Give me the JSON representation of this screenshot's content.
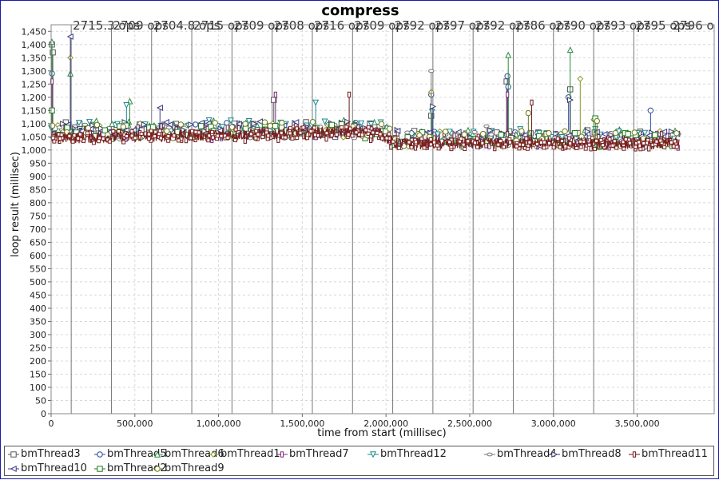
{
  "chart_data": {
    "type": "line",
    "title": "compress",
    "xlabel": "time from start (millisec)",
    "ylabel": "loop result (millisec)",
    "xlim": [
      0,
      3960000
    ],
    "ylim": [
      0,
      1475
    ],
    "x_ticks": [
      0,
      500000,
      1000000,
      1500000,
      2000000,
      2500000,
      3000000,
      3500000
    ],
    "x_tick_labels": [
      "0",
      "500,000",
      "1,000,000",
      "1,500,000",
      "2,000,000",
      "2,500,000",
      "3,000,000",
      "3,500,000"
    ],
    "y_ticks": [
      0,
      50,
      100,
      150,
      200,
      250,
      300,
      350,
      400,
      450,
      500,
      550,
      600,
      650,
      700,
      750,
      800,
      850,
      900,
      950,
      1000,
      1050,
      1100,
      1150,
      1200,
      1250,
      1300,
      1350,
      1400,
      1450
    ],
    "y_tick_labels": [
      "0",
      "50",
      "100",
      "150",
      "200",
      "250",
      "300",
      "350",
      "400",
      "450",
      "500",
      "550",
      "600",
      "650",
      "700",
      "750",
      "800",
      "850",
      "900",
      "950",
      "1,000",
      "1,050",
      "1,100",
      "1,150",
      "1,200",
      "1,250",
      "1,300",
      "1,350",
      "1,400",
      "1,450"
    ],
    "grid": true,
    "legend_position": "bottom",
    "marker_lines_x": [
      120000,
      360000,
      600000,
      840000,
      1080000,
      1320000,
      1560000,
      1800000,
      2040000,
      2280000,
      2520000,
      2760000,
      3000000,
      3240000,
      3480000
    ],
    "annotations": [
      "2715.3 ops",
      "2709 ops",
      "2704.8 ops",
      "2715 ops",
      "2709 ops",
      "2708 ops",
      "2716 ops",
      "2709 ops",
      "2792 ops",
      "2797 ops",
      "2792 ops",
      "2786 ops",
      "2790 ops",
      "2793 ops",
      "2795 ops",
      "2796 o"
    ],
    "series": [
      {
        "name": "bmThread3",
        "marker": "square",
        "color": "#555555",
        "baseline": [
          [
            0,
            1075
          ],
          [
            1950000,
            1080
          ],
          [
            2050000,
            1045
          ],
          [
            3750000,
            1045
          ]
        ],
        "spikes": [
          [
            5000,
            1400
          ],
          [
            10000,
            1370
          ],
          [
            1330000,
            1190
          ],
          [
            2270000,
            1130
          ],
          [
            2720000,
            1260
          ],
          [
            3100000,
            1230
          ]
        ]
      },
      {
        "name": "bmThread5",
        "marker": "circle",
        "color": "#2a4a9a",
        "baseline": [
          [
            0,
            1070
          ],
          [
            1950000,
            1078
          ],
          [
            2050000,
            1040
          ],
          [
            3750000,
            1040
          ]
        ],
        "spikes": [
          [
            5000,
            1290
          ],
          [
            2270000,
            1210
          ],
          [
            2725000,
            1280
          ],
          [
            2730000,
            1240
          ],
          [
            3090000,
            1200
          ],
          [
            3580000,
            1150
          ]
        ]
      },
      {
        "name": "bmThread6",
        "marker": "triangle-up",
        "color": "#2d8a3e",
        "baseline": [
          [
            0,
            1080
          ],
          [
            1950000,
            1085
          ],
          [
            2050000,
            1050
          ],
          [
            3750000,
            1050
          ]
        ],
        "spikes": [
          [
            5000,
            1410
          ],
          [
            115000,
            1290
          ],
          [
            470000,
            1185
          ],
          [
            2730000,
            1360
          ],
          [
            3100000,
            1380
          ]
        ]
      },
      {
        "name": "bmThread1",
        "marker": "diamond",
        "color": "#8a9a2a",
        "baseline": [
          [
            0,
            1072
          ],
          [
            1950000,
            1076
          ],
          [
            2050000,
            1042
          ],
          [
            3750000,
            1042
          ]
        ],
        "spikes": [
          [
            115000,
            1350
          ],
          [
            2270000,
            1220
          ],
          [
            3160000,
            1270
          ],
          [
            3240000,
            1115
          ]
        ]
      },
      {
        "name": "bmThread7",
        "marker": "rect-tall",
        "color": "#7a2a7a",
        "baseline": [
          [
            0,
            1065
          ],
          [
            1950000,
            1070
          ],
          [
            2050000,
            1038
          ],
          [
            3750000,
            1038
          ]
        ],
        "spikes": [
          [
            5000,
            1260
          ],
          [
            1340000,
            1210
          ],
          [
            2725000,
            1210
          ]
        ]
      },
      {
        "name": "bmThread12",
        "marker": "triangle-down",
        "color": "#1a8a8a",
        "baseline": [
          [
            0,
            1085
          ],
          [
            1950000,
            1088
          ],
          [
            2050000,
            1055
          ],
          [
            3750000,
            1055
          ]
        ],
        "spikes": [
          [
            450000,
            1170
          ],
          [
            1580000,
            1180
          ],
          [
            2275000,
            1145
          ]
        ]
      },
      {
        "name": "bmThread4",
        "marker": "ellipse",
        "color": "#777777",
        "baseline": [
          [
            0,
            1068
          ],
          [
            1950000,
            1072
          ],
          [
            2050000,
            1040
          ],
          [
            3750000,
            1040
          ]
        ],
        "spikes": [
          [
            2270000,
            1300
          ],
          [
            2600000,
            1090
          ]
        ]
      },
      {
        "name": "bmThread8",
        "marker": "triangle-right",
        "color": "#3a3a6a",
        "baseline": [
          [
            0,
            1078
          ],
          [
            1950000,
            1082
          ],
          [
            2050000,
            1048
          ],
          [
            3750000,
            1048
          ]
        ],
        "spikes": [
          [
            2280000,
            1165
          ],
          [
            3100000,
            1190
          ]
        ]
      },
      {
        "name": "bmThread11",
        "marker": "square-small",
        "color": "#6a1a1a",
        "baseline": [
          [
            0,
            1060
          ],
          [
            1950000,
            1068
          ],
          [
            2050000,
            1035
          ],
          [
            3750000,
            1035
          ]
        ],
        "spikes": [
          [
            1780000,
            1210
          ],
          [
            2870000,
            1180
          ]
        ]
      },
      {
        "name": "bmThread10",
        "marker": "triangle-left",
        "color": "#3a3a8a",
        "baseline": [
          [
            0,
            1075
          ],
          [
            1950000,
            1080
          ],
          [
            2050000,
            1045
          ],
          [
            3750000,
            1045
          ]
        ],
        "spikes": [
          [
            115000,
            1430
          ],
          [
            650000,
            1160
          ]
        ]
      },
      {
        "name": "bmThread2",
        "marker": "square-green",
        "color": "#1a7a1a",
        "baseline": [
          [
            0,
            1070
          ],
          [
            1950000,
            1074
          ],
          [
            2050000,
            1042
          ],
          [
            3750000,
            1042
          ]
        ],
        "spikes": [
          [
            5000,
            1150
          ],
          [
            3250000,
            1120
          ]
        ]
      },
      {
        "name": "bmThread9",
        "marker": "circle-olive",
        "color": "#6a7a1a",
        "baseline": [
          [
            0,
            1072
          ],
          [
            1950000,
            1078
          ],
          [
            2050000,
            1044
          ],
          [
            3750000,
            1044
          ]
        ],
        "spikes": [
          [
            2850000,
            1140
          ],
          [
            3260000,
            1110
          ]
        ]
      }
    ],
    "dense_band": {
      "color": "#7a2020",
      "center": [
        [
          0,
          1045
        ],
        [
          1950000,
          1070
        ],
        [
          2050000,
          1025
        ],
        [
          3750000,
          1025
        ]
      ],
      "amplitude": 22
    }
  }
}
